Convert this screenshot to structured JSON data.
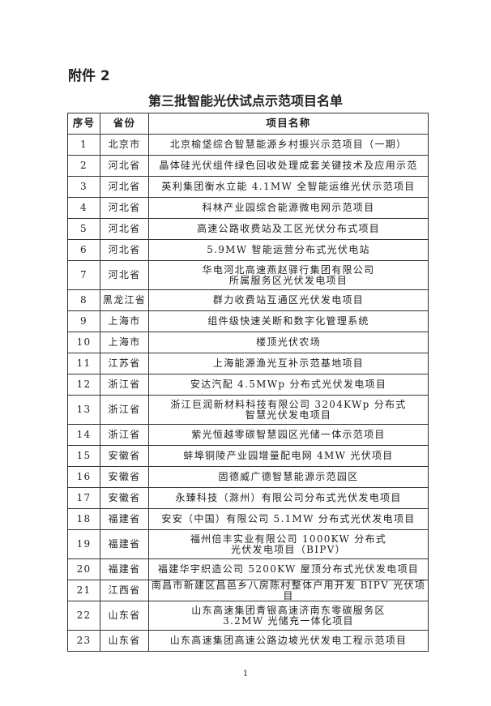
{
  "attachment_label": "附件 2",
  "title": "第三批智能光伏试点示范项目名单",
  "table": {
    "headers": [
      "序号",
      "省份",
      "项目名称"
    ],
    "rows": [
      {
        "no": "1",
        "province": "北京市",
        "name": "北京榆垡综合智慧能源乡村振兴示范项目（一期）"
      },
      {
        "no": "2",
        "province": "河北省",
        "name": "晶体硅光伏组件绿色回收处理成套关键技术及应用示范"
      },
      {
        "no": "3",
        "province": "河北省",
        "name": "英利集团衡水立能 4.1MW 全智能运维光伏示范项目"
      },
      {
        "no": "4",
        "province": "河北省",
        "name": "科林产业园综合能源微电网示范项目"
      },
      {
        "no": "5",
        "province": "河北省",
        "name": "高速公路收费站及工区光伏分布式项目"
      },
      {
        "no": "6",
        "province": "河北省",
        "name": "5.9MW 智能运营分布式光伏电站"
      },
      {
        "no": "7",
        "province": "河北省",
        "name": "华电河北高速燕赵驿行集团有限公司\n所属服务区光伏发电项目"
      },
      {
        "no": "8",
        "province": "黑龙江省",
        "name": "群力收费站互通区光伏发电项目"
      },
      {
        "no": "9",
        "province": "上海市",
        "name": "组件级快速关断和数字化管理系统"
      },
      {
        "no": "10",
        "province": "上海市",
        "name": "楼顶光伏农场"
      },
      {
        "no": "11",
        "province": "江苏省",
        "name": "上海能源渔光互补示范基地项目"
      },
      {
        "no": "12",
        "province": "浙江省",
        "name": "安达汽配 4.5MWp 分布式光伏发电项目"
      },
      {
        "no": "13",
        "province": "浙江省",
        "name": "浙江巨润新材料科技有限公司 3204KWp 分布式\n智慧光伏发电项目"
      },
      {
        "no": "14",
        "province": "浙江省",
        "name": "紫光恒越零碳智慧园区光储一体示范项目"
      },
      {
        "no": "15",
        "province": "安徽省",
        "name": "蚌埠铜陵产业园增量配电网 4MW 光伏项目"
      },
      {
        "no": "16",
        "province": "安徽省",
        "name": "固德威广德智慧能源示范园区"
      },
      {
        "no": "17",
        "province": "安徽省",
        "name": "永臻科技（滁州）有限公司分布式光伏发电项目"
      },
      {
        "no": "18",
        "province": "福建省",
        "name": "安安（中国）有限公司 5.1MW 分布式光伏发电项目"
      },
      {
        "no": "19",
        "province": "福建省",
        "name": "福州倍丰实业有限公司 1000KW 分布式\n光伏发电项目（BIPV）"
      },
      {
        "no": "20",
        "province": "福建省",
        "name": "福建华宇织造公司 5200KW 屋顶分布式光伏发电项目"
      },
      {
        "no": "21",
        "province": "江西省",
        "name": "南昌市新建区昌邑乡八房陈村整体户用开发 BIPV 光伏项目"
      },
      {
        "no": "22",
        "province": "山东省",
        "name": "山东高速集团青银高速济南东零碳服务区\n3.2MW 光储充一体化项目"
      },
      {
        "no": "23",
        "province": "山东省",
        "name": "山东高速集团高速公路边坡光伏发电工程示范项目"
      }
    ]
  },
  "page_number": "1"
}
